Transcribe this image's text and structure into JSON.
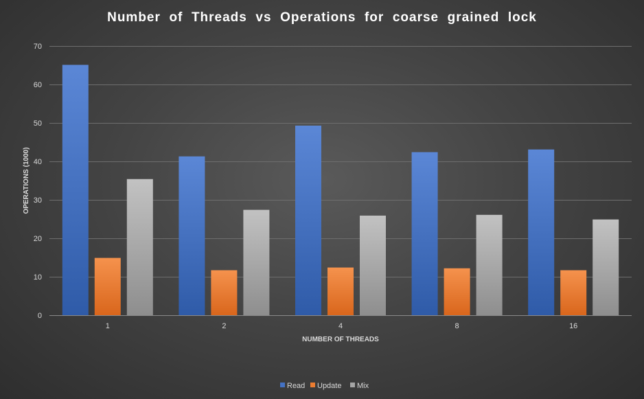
{
  "chart_data": {
    "type": "bar",
    "title": "Number  of  Threads  vs  Operations  for  coarse  grained  lock",
    "xlabel": "NUMBER OF THREADS",
    "ylabel": "OPERATIONS (1000)",
    "categories": [
      "1",
      "2",
      "4",
      "8",
      "16"
    ],
    "ylim": [
      0,
      70
    ],
    "yticks": [
      "0",
      "10",
      "20",
      "30",
      "40",
      "50",
      "60",
      "70"
    ],
    "grid": true,
    "legend_position": "bottom",
    "series": [
      {
        "name": "Read",
        "values": [
          65.1,
          41.3,
          49.3,
          42.4,
          43.1
        ],
        "color": "#4472c4"
      },
      {
        "name": "Update",
        "values": [
          14.9,
          11.7,
          12.4,
          12.2,
          11.7
        ],
        "color": "#ed7d31"
      },
      {
        "name": "Mix",
        "values": [
          35.4,
          27.4,
          25.9,
          26.1,
          24.9
        ],
        "color": "#a5a5a5"
      }
    ]
  }
}
